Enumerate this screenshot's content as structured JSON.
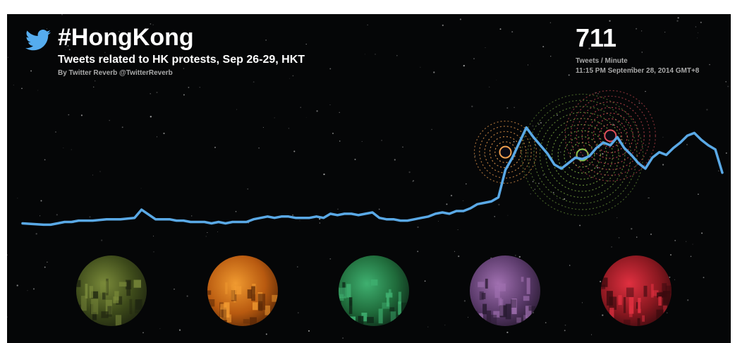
{
  "header": {
    "hashtag": "#HongKong",
    "subtitle": "Tweets related to HK protests, Sep 26-29, HKT",
    "byline": "By Twitter Reverb @TwitterReverb",
    "logo_icon": "twitter-bird-icon"
  },
  "readout": {
    "count": "711",
    "unit": "Tweets / Minute",
    "timestamp": "11:15 PM September 28, 2014 GMT+8"
  },
  "colors": {
    "background": "#050607",
    "line": "#5aa9e6",
    "title": "#ffffff",
    "secondary_text": "#a9a9a9"
  },
  "chart_data": {
    "type": "line",
    "title": "",
    "xlabel": "",
    "ylabel": "",
    "xlim": [
      0,
      100
    ],
    "ylim": [
      0,
      100
    ],
    "grid": false,
    "legend": "none",
    "series": [
      {
        "name": "",
        "x": [
          0,
          3,
          4,
          5,
          6,
          7,
          8,
          9,
          10,
          12,
          14,
          16,
          17,
          19,
          20,
          21,
          22,
          23,
          24,
          26,
          27,
          28,
          29,
          30,
          32,
          33,
          35,
          36,
          37,
          38,
          39,
          40,
          41,
          42,
          43,
          44,
          45,
          46,
          47,
          48,
          49,
          50,
          51,
          52,
          53,
          54,
          55,
          56,
          57,
          58,
          59,
          60,
          61,
          62,
          63,
          64,
          65,
          66,
          67,
          68,
          69,
          70,
          71,
          72,
          73,
          74,
          75,
          76,
          77,
          78,
          79,
          80,
          81,
          82,
          83,
          84,
          85,
          86,
          87,
          88,
          89,
          90,
          91,
          92,
          93,
          94,
          95,
          96,
          97,
          98,
          99,
          100
        ],
        "values": [
          8,
          7,
          7,
          8,
          9,
          9,
          10,
          10,
          10,
          11,
          11,
          12,
          18,
          11,
          11,
          11,
          10,
          10,
          9,
          9,
          8,
          9,
          8,
          9,
          9,
          11,
          13,
          12,
          13,
          13,
          12,
          12,
          12,
          13,
          12,
          15,
          14,
          15,
          15,
          14,
          15,
          16,
          12,
          11,
          11,
          10,
          10,
          11,
          12,
          13,
          15,
          16,
          15,
          17,
          17,
          19,
          22,
          23,
          24,
          27,
          47,
          56,
          67,
          78,
          71,
          65,
          59,
          51,
          48,
          52,
          56,
          55,
          57,
          63,
          67,
          65,
          71,
          63,
          58,
          52,
          48,
          56,
          60,
          58,
          63,
          67,
          72,
          74,
          69,
          65,
          62,
          45
        ]
      }
    ],
    "annotations": [
      {
        "label": "burst-1",
        "x": 69,
        "y": 60,
        "color": "#f0a050"
      },
      {
        "label": "burst-2",
        "x": 80,
        "y": 58,
        "color": "#8ac24a"
      },
      {
        "label": "burst-3",
        "x": 84,
        "y": 72,
        "color": "#e0505a"
      }
    ]
  },
  "photos": [
    {
      "name": "photo-riot-police",
      "colors": [
        "#3d4a1a",
        "#7a8a3a",
        "#1e2410"
      ]
    },
    {
      "name": "photo-tear-gas",
      "colors": [
        "#b85a10",
        "#f09a30",
        "#5a2806"
      ]
    },
    {
      "name": "photo-city-lights",
      "colors": [
        "#1f6a3a",
        "#3fb070",
        "#0e2818"
      ]
    },
    {
      "name": "photo-crowd-night",
      "colors": [
        "#5a3a6a",
        "#a070b0",
        "#281a30"
      ]
    },
    {
      "name": "photo-red-crowd",
      "colors": [
        "#8a1820",
        "#e03040",
        "#3a0a0e"
      ]
    }
  ]
}
